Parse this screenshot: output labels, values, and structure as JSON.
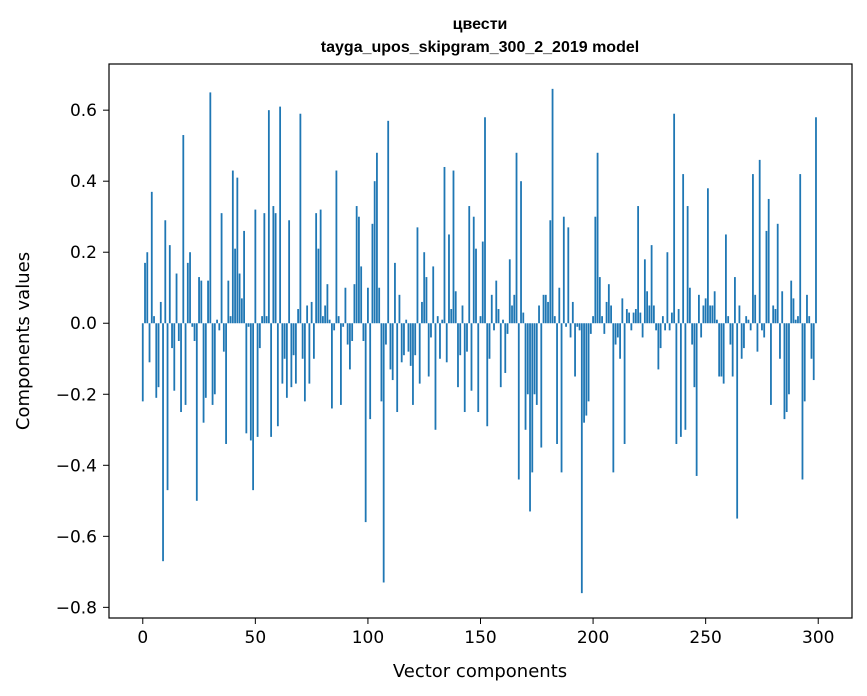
{
  "chart_data": {
    "type": "bar",
    "title": "цвести",
    "subtitle": "tayga_upos_skipgram_300_2_2019 model",
    "xlabel": "Vector components",
    "ylabel": "Components values",
    "xlim": [
      -15,
      315
    ],
    "ylim": [
      -0.83,
      0.73
    ],
    "xticks": [
      0,
      50,
      100,
      150,
      200,
      250,
      300
    ],
    "xtick_labels": [
      "0",
      "50",
      "100",
      "150",
      "200",
      "250",
      "300"
    ],
    "yticks": [
      -0.8,
      -0.6,
      -0.4,
      -0.2,
      0.0,
      0.2,
      0.4,
      0.6
    ],
    "ytick_labels": [
      "−0.8",
      "−0.6",
      "−0.4",
      "−0.2",
      "0.0",
      "0.2",
      "0.4",
      "0.6"
    ],
    "bar_color": "#1f77b4",
    "x": [
      0,
      1,
      2,
      3,
      4,
      5,
      6,
      7,
      8,
      9,
      10,
      11,
      12,
      13,
      14,
      15,
      16,
      17,
      18,
      19,
      20,
      21,
      22,
      23,
      24,
      25,
      26,
      27,
      28,
      29,
      30,
      31,
      32,
      33,
      34,
      35,
      36,
      37,
      38,
      39,
      40,
      41,
      42,
      43,
      44,
      45,
      46,
      47,
      48,
      49,
      50,
      51,
      52,
      53,
      54,
      55,
      56,
      57,
      58,
      59,
      60,
      61,
      62,
      63,
      64,
      65,
      66,
      67,
      68,
      69,
      70,
      71,
      72,
      73,
      74,
      75,
      76,
      77,
      78,
      79,
      80,
      81,
      82,
      83,
      84,
      85,
      86,
      87,
      88,
      89,
      90,
      91,
      92,
      93,
      94,
      95,
      96,
      97,
      98,
      99,
      100,
      101,
      102,
      103,
      104,
      105,
      106,
      107,
      108,
      109,
      110,
      111,
      112,
      113,
      114,
      115,
      116,
      117,
      118,
      119,
      120,
      121,
      122,
      123,
      124,
      125,
      126,
      127,
      128,
      129,
      130,
      131,
      132,
      133,
      134,
      135,
      136,
      137,
      138,
      139,
      140,
      141,
      142,
      143,
      144,
      145,
      146,
      147,
      148,
      149,
      150,
      151,
      152,
      153,
      154,
      155,
      156,
      157,
      158,
      159,
      160,
      161,
      162,
      163,
      164,
      165,
      166,
      167,
      168,
      169,
      170,
      171,
      172,
      173,
      174,
      175,
      176,
      177,
      178,
      179,
      180,
      181,
      182,
      183,
      184,
      185,
      186,
      187,
      188,
      189,
      190,
      191,
      192,
      193,
      194,
      195,
      196,
      197,
      198,
      199,
      200,
      201,
      202,
      203,
      204,
      205,
      206,
      207,
      208,
      209,
      210,
      211,
      212,
      213,
      214,
      215,
      216,
      217,
      218,
      219,
      220,
      221,
      222,
      223,
      224,
      225,
      226,
      227,
      228,
      229,
      230,
      231,
      232,
      233,
      234,
      235,
      236,
      237,
      238,
      239,
      240,
      241,
      242,
      243,
      244,
      245,
      246,
      247,
      248,
      249,
      250,
      251,
      252,
      253,
      254,
      255,
      256,
      257,
      258,
      259,
      260,
      261,
      262,
      263,
      264,
      265,
      266,
      267,
      268,
      269,
      270,
      271,
      272,
      273,
      274,
      275,
      276,
      277,
      278,
      279,
      280,
      281,
      282,
      283,
      284,
      285,
      286,
      287,
      288,
      289,
      290,
      291,
      292,
      293,
      294,
      295,
      296,
      297,
      298,
      299
    ],
    "values": [
      -0.22,
      0.17,
      0.2,
      -0.11,
      0.37,
      0.02,
      -0.21,
      -0.18,
      0.06,
      -0.67,
      0.29,
      -0.47,
      0.22,
      -0.07,
      -0.19,
      0.14,
      -0.05,
      -0.25,
      0.53,
      -0.23,
      0.17,
      0.2,
      -0.01,
      -0.05,
      -0.5,
      0.13,
      0.12,
      -0.28,
      -0.21,
      0.12,
      0.65,
      -0.23,
      -0.2,
      0.01,
      -0.02,
      0.31,
      -0.08,
      -0.34,
      0.12,
      0.02,
      0.43,
      0.21,
      0.41,
      0.14,
      0.07,
      0.26,
      -0.31,
      -0.01,
      -0.33,
      -0.47,
      0.32,
      -0.32,
      -0.07,
      0.02,
      0.31,
      0.02,
      0.6,
      -0.32,
      0.33,
      0.31,
      -0.29,
      0.61,
      -0.17,
      -0.1,
      -0.21,
      0.29,
      -0.18,
      -0.09,
      -0.17,
      0.04,
      0.59,
      -0.1,
      -0.22,
      0.05,
      -0.17,
      0.06,
      -0.1,
      0.31,
      0.21,
      0.32,
      0.02,
      0.05,
      0.11,
      0.01,
      -0.24,
      -0.02,
      0.43,
      0.02,
      -0.23,
      -0.01,
      0.1,
      -0.06,
      -0.13,
      -0.05,
      0.11,
      0.33,
      0.3,
      0.16,
      -0.05,
      -0.56,
      0.1,
      -0.27,
      0.28,
      0.4,
      0.48,
      0.1,
      -0.22,
      -0.73,
      -0.06,
      0.57,
      -0.13,
      -0.16,
      0.17,
      -0.25,
      0.08,
      -0.11,
      -0.09,
      0.01,
      -0.08,
      -0.12,
      -0.23,
      -0.09,
      0.27,
      -0.17,
      0.06,
      0.2,
      0.13,
      -0.15,
      -0.04,
      0.16,
      -0.3,
      0.02,
      -0.1,
      0.01,
      0.44,
      -0.11,
      0.25,
      0.04,
      0.43,
      0.09,
      -0.18,
      -0.09,
      0.05,
      -0.25,
      -0.08,
      0.33,
      -0.19,
      0.3,
      0.21,
      -0.25,
      0.02,
      0.23,
      0.58,
      -0.29,
      -0.1,
      0.08,
      -0.02,
      0.12,
      0.04,
      -0.18,
      0.01,
      -0.14,
      -0.03,
      0.18,
      0.05,
      0.08,
      0.48,
      -0.44,
      0.4,
      0.03,
      -0.3,
      -0.2,
      -0.53,
      -0.42,
      -0.2,
      -0.23,
      0.05,
      -0.35,
      0.08,
      0.08,
      0.06,
      0.29,
      0.66,
      0.02,
      -0.34,
      0.1,
      -0.42,
      0.3,
      -0.01,
      0.27,
      -0.04,
      0.06,
      -0.15,
      -0.01,
      -0.02,
      -0.76,
      -0.28,
      -0.26,
      -0.22,
      -0.03,
      0.02,
      0.3,
      0.48,
      0.13,
      0.02,
      -0.03,
      0.06,
      0.11,
      0.05,
      -0.42,
      -0.06,
      -0.04,
      -0.1,
      0.07,
      -0.34,
      0.04,
      0.03,
      -0.02,
      0.03,
      0.04,
      0.33,
      0.03,
      -0.04,
      0.18,
      0.09,
      0.05,
      0.22,
      0.05,
      -0.02,
      -0.13,
      -0.07,
      0.02,
      -0.02,
      0.2,
      -0.02,
      0.03,
      0.59,
      -0.34,
      0.04,
      -0.32,
      0.42,
      -0.3,
      0.33,
      0.1,
      -0.06,
      -0.18,
      -0.43,
      0.08,
      -0.04,
      0.05,
      0.07,
      0.38,
      0.05,
      0.05,
      0.09,
      0.01,
      -0.15,
      -0.15,
      -0.17,
      0.25,
      0.02,
      -0.06,
      -0.15,
      0.13,
      -0.55,
      0.05,
      -0.1,
      -0.07,
      0.02,
      0.01,
      -0.02,
      0.42,
      0.08,
      -0.08,
      0.46,
      -0.02,
      -0.04,
      0.26,
      0.35,
      -0.23,
      0.05,
      0.04,
      0.28,
      -0.1,
      0.09,
      -0.27,
      -0.25,
      -0.2,
      0.12,
      0.07,
      0.01,
      0.02,
      0.42,
      -0.44,
      -0.22,
      0.08,
      0.02,
      -0.1,
      -0.16,
      0.58
    ]
  }
}
